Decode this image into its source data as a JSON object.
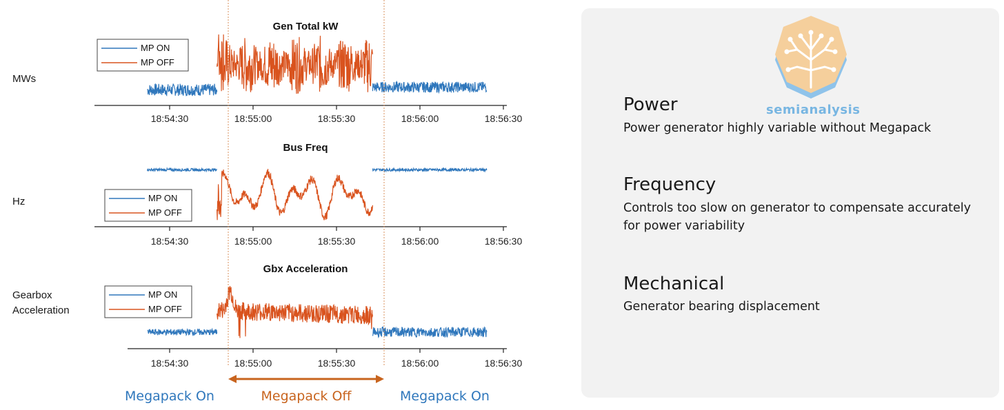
{
  "colors": {
    "mp_on": "#2f77bc",
    "mp_off": "#d9531e",
    "divider": "#d9925e",
    "arrow": "#c8641e"
  },
  "row_labels": {
    "power": "MWs",
    "frequency": "Hz",
    "gearbox": "Gearbox\nAcceleration"
  },
  "tick_labels": [
    "18:54:30",
    "18:55:00",
    "18:55:30",
    "18:56:00",
    "18:56:30"
  ],
  "chart_data": [
    {
      "type": "line",
      "title": "Gen Total kW",
      "x_ticks": [
        "18:54:30",
        "18:55:00",
        "18:55:30",
        "18:56:00",
        "18:56:30"
      ],
      "legend": [
        "MP ON",
        "MP OFF"
      ],
      "legend_position": "top-left",
      "segments": [
        {
          "series": "MP ON",
          "x_range": [
            "18:54:22",
            "18:54:47"
          ],
          "level": 0.18,
          "noise": 0.09
        },
        {
          "series": "MP OFF",
          "x_range": [
            "18:54:47",
            "18:55:43"
          ],
          "level": 0.55,
          "noise": 0.55,
          "peak": 1.0
        },
        {
          "series": "MP ON",
          "x_range": [
            "18:55:43",
            "18:56:24"
          ],
          "level": 0.22,
          "noise": 0.08
        }
      ]
    },
    {
      "type": "line",
      "title": "Bus Freq",
      "x_ticks": [
        "18:54:30",
        "18:55:00",
        "18:55:30",
        "18:56:00",
        "18:56:30"
      ],
      "legend": [
        "MP ON",
        "MP OFF"
      ],
      "legend_position": "bottom-left",
      "segments": [
        {
          "series": "MP ON",
          "x_range": [
            "18:54:22",
            "18:54:47"
          ],
          "level": 0.8,
          "noise": 0.02
        },
        {
          "series": "MP OFF",
          "x_range": [
            "18:54:47",
            "18:55:43"
          ],
          "level": 0.45,
          "noise": 0.45,
          "peak": 1.0
        },
        {
          "series": "MP ON",
          "x_range": [
            "18:55:43",
            "18:56:24"
          ],
          "level": 0.8,
          "noise": 0.02
        }
      ]
    },
    {
      "type": "line",
      "title": "Gbx Acceleration",
      "x_ticks": [
        "18:54:30",
        "18:55:00",
        "18:55:30",
        "18:56:00",
        "18:56:30"
      ],
      "legend": [
        "MP ON",
        "MP OFF"
      ],
      "legend_position": "top-left",
      "segments": [
        {
          "series": "MP ON",
          "x_range": [
            "18:54:22",
            "18:54:47"
          ],
          "level": 0.2,
          "noise": 0.05
        },
        {
          "series": "MP OFF",
          "x_range": [
            "18:54:47",
            "18:55:43"
          ],
          "level": 0.55,
          "noise": 0.15,
          "peak": 1.0
        },
        {
          "series": "MP ON",
          "x_range": [
            "18:55:43",
            "18:56:24"
          ],
          "level": 0.2,
          "noise": 0.08
        }
      ]
    }
  ],
  "phases": [
    {
      "label": "Megapack On",
      "color": "#2f77bc"
    },
    {
      "label": "Megapack Off",
      "color": "#c8641e"
    },
    {
      "label": "Megapack On",
      "color": "#2f77bc"
    }
  ],
  "panel": {
    "logo_text": "semianalysis",
    "items": [
      {
        "heading": "Power",
        "description": "Power generator highly variable without Megapack"
      },
      {
        "heading": "Frequency",
        "description": "Controls too slow on generator to compensate accurately for power variability"
      },
      {
        "heading": "Mechanical",
        "description": "Generator bearing displacement"
      }
    ]
  }
}
